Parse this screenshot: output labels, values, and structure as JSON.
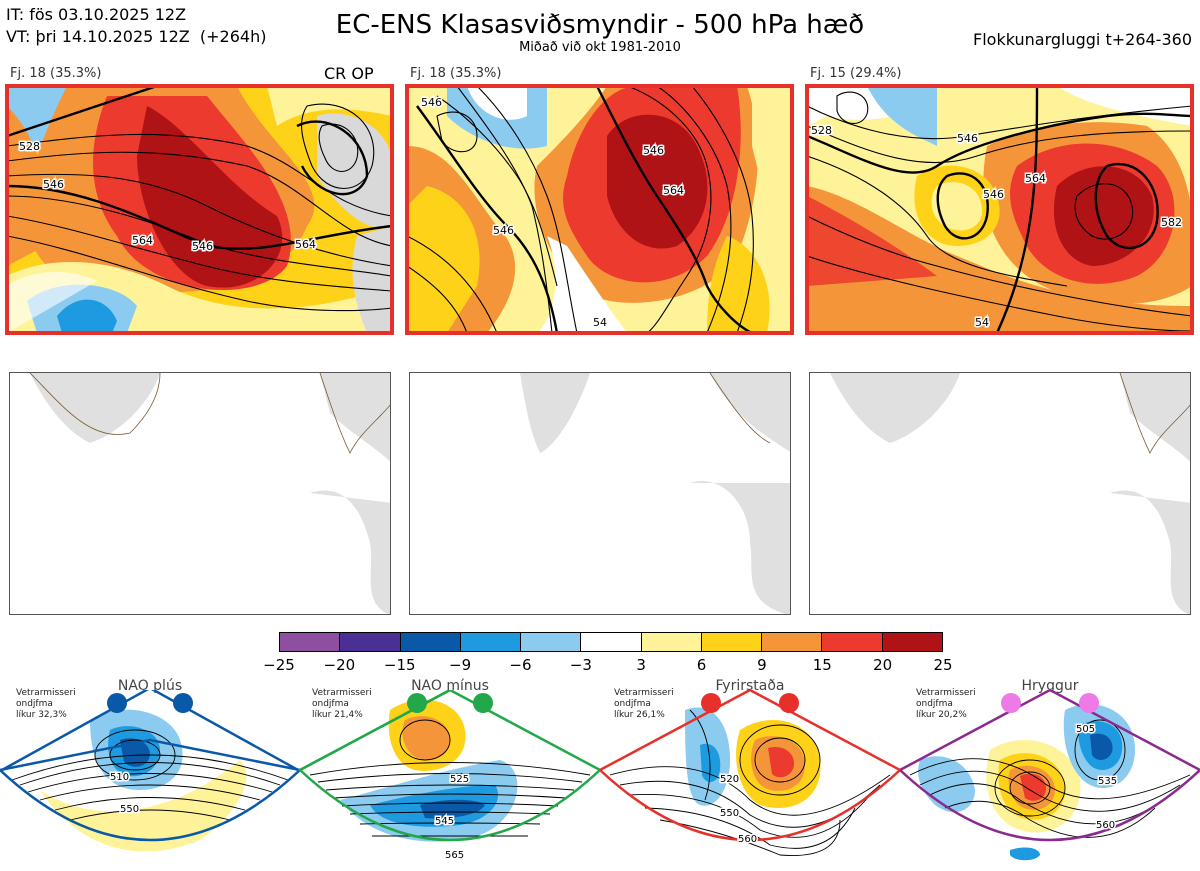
{
  "header": {
    "it_line": "IT: fös 03.10.2025 12Z",
    "vt_line": "VT: þri 14.10.2025 12Z  (+264h)",
    "title": "EC-ENS Klasasviðsmyndir - 500 hPa hæð",
    "subtitle": "Miðað við okt 1981-2010",
    "window": "Flokkunargluggi t+264-360"
  },
  "clusters": [
    {
      "label": "Fj. 18 (35.3%)",
      "badge": "CR OP",
      "contours": [
        "528",
        "546",
        "564",
        "546",
        "564"
      ]
    },
    {
      "label": "Fj. 18 (35.3%)",
      "badge": "",
      "contours": [
        "546",
        "546",
        "564",
        "546",
        "54"
      ]
    },
    {
      "label": "Fj. 15 (29.4%)",
      "badge": "",
      "contours": [
        "528",
        "546",
        "546",
        "564",
        "582",
        "54"
      ]
    }
  ],
  "colorbar": {
    "colors": [
      "#8e4fa0",
      "#4a2f94",
      "#0a58a8",
      "#1d9ae0",
      "#8ccbf0",
      "#ffffff",
      "#fff39a",
      "#ffd21a",
      "#f5953a",
      "#ec3a2e",
      "#b01315"
    ],
    "ticks": [
      "−25",
      "−20",
      "−15",
      "−9",
      "−6",
      "−3",
      "3",
      "6",
      "9",
      "15",
      "20",
      "25"
    ]
  },
  "regimes": [
    {
      "name": "NAO plús",
      "note": [
        "Vetrarmisseri",
        "ondjfma",
        "líkur 32,3%"
      ],
      "dot_color": "#0a58a8",
      "frame_color": "#0a58a8",
      "contours": [
        "510",
        "550"
      ]
    },
    {
      "name": "NAO mínus",
      "note": [
        "Vetrarmisseri",
        "ondjfma",
        "líkur 21,4%"
      ],
      "dot_color": "#22a84a",
      "frame_color": "#22a84a",
      "contours": [
        "525",
        "545",
        "565"
      ]
    },
    {
      "name": "Fyrirstaða",
      "note": [
        "Vetrarmisseri",
        "ondjfma",
        "líkur 26,1%"
      ],
      "dot_color": "#e8302b",
      "frame_color": "#e8302b",
      "contours": [
        "520",
        "550",
        "560"
      ]
    },
    {
      "name": "Hryggur",
      "note": [
        "Vetrarmisseri",
        "ondjfma",
        "líkur 20,2%"
      ],
      "dot_color": "#ee7ae8",
      "frame_color": "#8a2a8e",
      "contours": [
        "505",
        "535",
        "560"
      ]
    }
  ]
}
